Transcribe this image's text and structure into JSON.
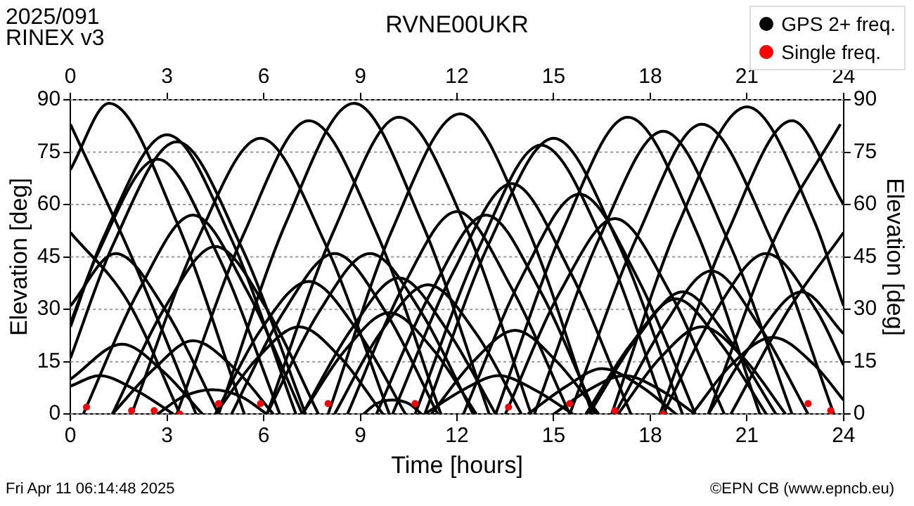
{
  "chart_data": {
    "type": "line",
    "title": "RVNE00UKR",
    "xlabel": "Time [hours]",
    "ylabel": "Elevation [deg]",
    "y2label": "Elevation [deg]",
    "annotations": [
      "2025/091",
      "RINEX v3",
      "Fri Apr 11 06:14:48 2025",
      "©EPN CB (www.epncb.eu)"
    ],
    "xlim": [
      0,
      24
    ],
    "xticks": [
      0,
      3,
      6,
      9,
      12,
      15,
      18,
      21,
      24
    ],
    "x2lim": [
      0,
      24
    ],
    "x2ticks": [
      0,
      3,
      6,
      9,
      12,
      15,
      18,
      21,
      24
    ],
    "ylim": [
      0,
      90
    ],
    "yticks": [
      0,
      15,
      30,
      45,
      60,
      75,
      90
    ],
    "y2lim": [
      0,
      90
    ],
    "y2ticks": [
      0,
      15,
      30,
      45,
      60,
      75,
      90
    ],
    "grid": "y",
    "legend": "top right",
    "marker": "none",
    "series": [
      {
        "name": "GPS 2+ freq.",
        "color": "#000000",
        "x": [
          0,
          1.2,
          3.3,
          5.4
        ],
        "values": [
          70,
          89,
          55,
          0
        ]
      },
      {
        "color": "#000000",
        "x": [
          0,
          1,
          3,
          5,
          7
        ],
        "values": [
          25,
          50,
          80,
          50,
          0
        ]
      },
      {
        "color": "#000000",
        "x": [
          0,
          1.3,
          3.3,
          5.3,
          7.3
        ],
        "values": [
          16,
          48,
          78,
          48,
          0
        ]
      },
      {
        "color": "#000000",
        "x": [
          0,
          0.8,
          2.7,
          4.6,
          6.5
        ],
        "values": [
          26,
          45,
          73,
          45,
          0
        ]
      },
      {
        "color": "#000000",
        "x": [
          0,
          1.9,
          3.9
        ],
        "values": [
          83,
          45,
          0
        ]
      },
      {
        "color": "#000000",
        "x": [
          1.9,
          3.9,
          5.9,
          7.9,
          9.9
        ],
        "values": [
          0,
          49,
          79,
          49,
          0
        ]
      },
      {
        "color": "#000000",
        "x": [
          3.3,
          5.4,
          7.4,
          9.5,
          11.5
        ],
        "values": [
          0,
          52,
          84,
          52,
          0
        ]
      },
      {
        "color": "#000000",
        "x": [
          4.6,
          6.7,
          8.8,
          10.9,
          13
        ],
        "values": [
          0,
          55,
          89,
          55,
          0
        ]
      },
      {
        "color": "#000000",
        "x": [
          6.1,
          8.2,
          10.2,
          12.3,
          14.3
        ],
        "values": [
          0,
          53,
          85,
          53,
          0
        ]
      },
      {
        "color": "#000000",
        "x": [
          8,
          10,
          12.1,
          14.2,
          16.2
        ],
        "values": [
          0,
          53,
          86,
          53,
          0
        ]
      },
      {
        "color": "#000000",
        "x": [
          10.7,
          12.7,
          14.6,
          16.6,
          18.5
        ],
        "values": [
          0,
          48,
          77,
          48,
          0
        ]
      },
      {
        "color": "#000000",
        "x": [
          11,
          13,
          15,
          17,
          19
        ],
        "values": [
          0,
          49,
          79,
          49,
          0
        ]
      },
      {
        "color": "#000000",
        "x": [
          10,
          11.9,
          13.7,
          15.5,
          17.4
        ],
        "values": [
          0,
          41,
          66,
          41,
          0
        ]
      },
      {
        "color": "#000000",
        "x": [
          12.2,
          14,
          15.8,
          17.6,
          19.4
        ],
        "values": [
          0,
          39,
          63,
          39,
          0
        ]
      },
      {
        "color": "#000000",
        "x": [
          8.6,
          10.3,
          12,
          13.7,
          15.5
        ],
        "values": [
          0,
          36,
          58,
          36,
          0
        ]
      },
      {
        "color": "#000000",
        "x": [
          9.5,
          11.2,
          12.9,
          14.6,
          16.3
        ],
        "values": [
          0,
          35,
          57,
          35,
          0
        ]
      },
      {
        "color": "#000000",
        "x": [
          5,
          6.6,
          8.2,
          9.8,
          11.4
        ],
        "values": [
          0,
          29,
          46,
          29,
          0
        ]
      },
      {
        "color": "#000000",
        "x": [
          6.1,
          7.7,
          9.3,
          10.9,
          12.5
        ],
        "values": [
          0,
          29,
          46,
          29,
          0
        ]
      },
      {
        "color": "#000000",
        "x": [
          7.2,
          8.7,
          10.2,
          11.7,
          13.2
        ],
        "values": [
          0,
          24,
          39,
          24,
          0
        ]
      },
      {
        "color": "#000000",
        "x": [
          8.2,
          9.6,
          11.1,
          12.6,
          14
        ],
        "values": [
          0,
          23,
          37,
          23,
          0
        ]
      },
      {
        "color": "#000000",
        "x": [
          7.2,
          8.5,
          9.9,
          11.3,
          12.6
        ],
        "values": [
          0,
          18,
          29,
          18,
          0
        ]
      },
      {
        "color": "#000000",
        "x": [
          11.2,
          12.5,
          13.8,
          15.1,
          16.4
        ],
        "values": [
          0,
          15,
          24,
          15,
          0
        ]
      },
      {
        "color": "#000000",
        "x": [
          11,
          12.2,
          13.3,
          14.4,
          15.6
        ],
        "values": [
          0,
          7,
          11,
          7,
          0
        ]
      },
      {
        "color": "#000000",
        "x": [
          9.1,
          9.5,
          10,
          10.5,
          10.9
        ],
        "values": [
          0,
          3,
          4,
          3,
          0
        ]
      },
      {
        "color": "#000000",
        "x": [
          13.2,
          15.3,
          17.3,
          19.4,
          21.4
        ],
        "values": [
          0,
          53,
          85,
          53,
          0
        ]
      },
      {
        "color": "#000000",
        "x": [
          14.4,
          16.4,
          18.4,
          20.4,
          22.4
        ],
        "values": [
          0,
          50,
          81,
          50,
          0
        ]
      },
      {
        "color": "#000000",
        "x": [
          15.5,
          17.6,
          19.6,
          21.7,
          23.7
        ],
        "values": [
          0,
          51,
          83,
          51,
          0
        ]
      },
      {
        "color": "#000000",
        "x": [
          16.8,
          18.9,
          21,
          23.1,
          24
        ],
        "values": [
          0,
          55,
          88,
          55,
          31
        ]
      },
      {
        "color": "#000000",
        "x": [
          18.3,
          20.4,
          22.4,
          24
        ],
        "values": [
          0,
          52,
          84,
          60
        ]
      },
      {
        "color": "#000000",
        "x": [
          19.8,
          21.9,
          23.9
        ],
        "values": [
          0,
          51,
          83
        ]
      },
      {
        "color": "#000000",
        "x": [
          13.5,
          15.2,
          16.9,
          18.6,
          20.3
        ],
        "values": [
          0,
          35,
          56,
          35,
          0
        ]
      },
      {
        "color": "#000000",
        "x": [
          18.4,
          20,
          21.6,
          23.2,
          24
        ],
        "values": [
          0,
          29,
          46,
          29,
          14
        ]
      },
      {
        "color": "#000000",
        "x": [
          16.9,
          18.4,
          19.9,
          21.4,
          22.9
        ],
        "values": [
          0,
          25,
          41,
          25,
          0
        ]
      },
      {
        "color": "#000000",
        "x": [
          16.1,
          17.6,
          19,
          20.4,
          21.9
        ],
        "values": [
          0,
          22,
          35,
          22,
          0
        ]
      },
      {
        "color": "#000000",
        "x": [
          16,
          17.4,
          18.8,
          20.2,
          21.6
        ],
        "values": [
          0,
          20,
          33,
          20,
          0
        ]
      },
      {
        "color": "#000000",
        "x": [
          19.8,
          21.3,
          22.7,
          24
        ],
        "values": [
          0,
          22,
          35,
          23
        ]
      },
      {
        "color": "#000000",
        "x": [
          17,
          18.3,
          19.6,
          20.9,
          22.2
        ],
        "values": [
          0,
          16,
          25,
          16,
          0
        ]
      },
      {
        "color": "#000000",
        "x": [
          19.3,
          20.5,
          21.8,
          23.1,
          24
        ],
        "values": [
          0,
          14,
          22,
          14,
          4
        ]
      },
      {
        "color": "#000000",
        "x": [
          20.5,
          22.3,
          24
        ],
        "values": [
          0,
          30,
          52
        ]
      },
      {
        "color": "#000000",
        "x": [
          14.2,
          15.4,
          16.5,
          17.7,
          18.8
        ],
        "values": [
          0,
          8,
          13,
          8,
          0
        ]
      },
      {
        "color": "#000000",
        "x": [
          15,
          16.1,
          17.2,
          18.3,
          19.4
        ],
        "values": [
          0,
          7,
          11,
          7,
          0
        ]
      },
      {
        "color": "#000000",
        "x": [
          0.4,
          2.1,
          3.8,
          5.5,
          7.2
        ],
        "values": [
          0,
          35,
          57,
          35,
          0
        ]
      },
      {
        "color": "#000000",
        "x": [
          0,
          1.8,
          3.4
        ],
        "values": [
          52,
          32,
          0
        ]
      },
      {
        "color": "#000000",
        "x": [
          0,
          1.4,
          3,
          4.6
        ],
        "values": [
          31,
          46,
          29,
          0
        ]
      },
      {
        "color": "#000000",
        "x": [
          1.3,
          2.9,
          4.5,
          6.1,
          7.7
        ],
        "values": [
          0,
          30,
          48,
          30,
          0
        ]
      },
      {
        "color": "#000000",
        "x": [
          4.5,
          5.9,
          7.4,
          8.9,
          10.4
        ],
        "values": [
          0,
          24,
          38,
          24,
          0
        ]
      },
      {
        "color": "#000000",
        "x": [
          0,
          1.6,
          2.9,
          4.1
        ],
        "values": [
          10,
          20,
          12,
          0
        ]
      },
      {
        "color": "#000000",
        "x": [
          1.3,
          2.6,
          3.8,
          5.1,
          6.3
        ],
        "values": [
          0,
          13,
          21,
          13,
          0
        ]
      },
      {
        "color": "#000000",
        "x": [
          4.5,
          5.8,
          7.1,
          8.4,
          9.7
        ],
        "values": [
          0,
          16,
          25,
          16,
          0
        ]
      },
      {
        "color": "#000000",
        "x": [
          0,
          0.9,
          2,
          3.2
        ],
        "values": [
          8,
          11,
          7,
          0
        ]
      },
      {
        "color": "#000000",
        "x": [
          2.7,
          3.5,
          4.4,
          5.3,
          6.1
        ],
        "values": [
          0,
          5,
          7,
          5,
          0
        ]
      },
      {
        "name": "Single freq.",
        "type": "scatter",
        "marker": "circle",
        "color": "#ff0000",
        "x": [
          0.5,
          1.9,
          2.6,
          3.4,
          4.6,
          5.9,
          8,
          10.7,
          13.6,
          15.5,
          16.9,
          18.4,
          22.9,
          23.6
        ],
        "values": [
          2,
          1,
          1,
          0,
          3,
          3,
          3,
          3,
          2,
          3,
          1,
          0,
          3,
          1
        ]
      }
    ]
  }
}
